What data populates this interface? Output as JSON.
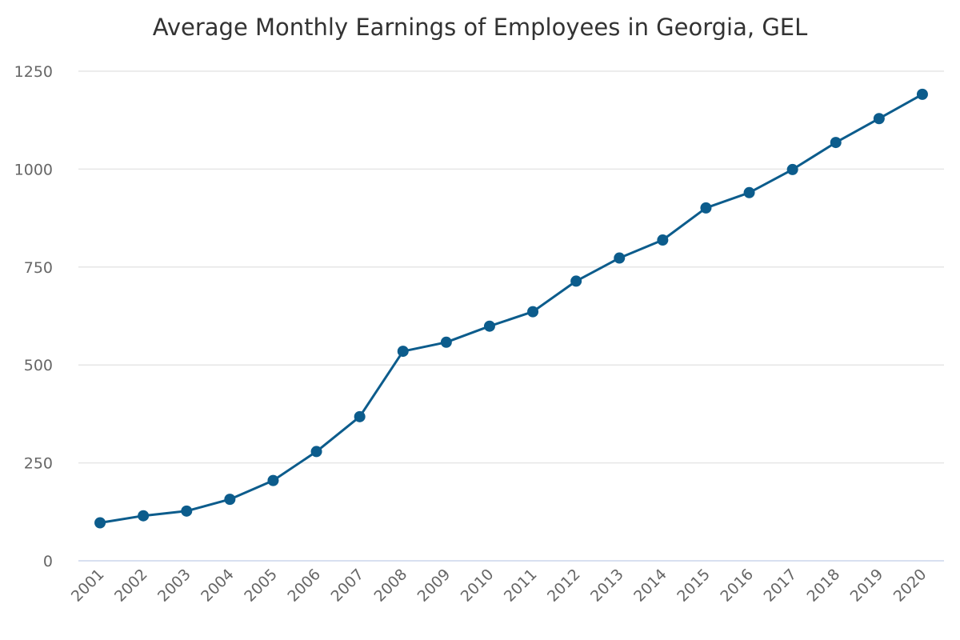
{
  "chart_data": {
    "type": "line",
    "title": "Average Monthly Earnings of Employees in Georgia, GEL",
    "xlabel": "",
    "ylabel": "",
    "ylim": [
      0,
      1250
    ],
    "yticks": [
      0,
      250,
      500,
      750,
      1000,
      1250
    ],
    "grid": true,
    "legend": "none",
    "categories": [
      "2001",
      "2002",
      "2003",
      "2004",
      "2005",
      "2006",
      "2007",
      "2008",
      "2009",
      "2010",
      "2011",
      "2012",
      "2013",
      "2014",
      "2015",
      "2016",
      "2017",
      "2018",
      "2019",
      "2020"
    ],
    "series": [
      {
        "name": "Average Monthly Earnings",
        "color": "#0c5c8c",
        "values": [
          97,
          115,
          127,
          157,
          205,
          279,
          368,
          535,
          558,
          599,
          636,
          714,
          773,
          819,
          901,
          940,
          999,
          1068,
          1129,
          1191
        ]
      }
    ]
  }
}
